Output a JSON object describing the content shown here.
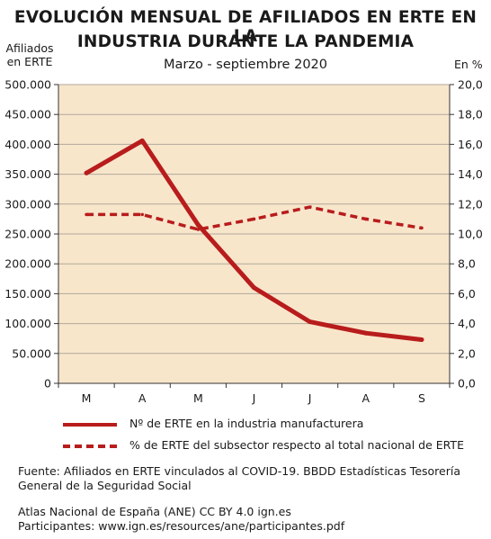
{
  "title_line1": "EVOLUCIÓN MENSUAL DE AFILIADOS EN ERTE EN LA",
  "title_line2": "INDUSTRIA DURANTE LA PANDEMIA",
  "subtitle": "Marzo - septiembre 2020",
  "ylabel_left_line1": "Afiliados",
  "ylabel_left_line2": "en ERTE",
  "ylabel_right": "En %",
  "source_line1": "Fuente: Afiliados en ERTE vinculados al COVID-19. BBDD Estadísticas Tesorería",
  "source_line2": "General de la Seguridad Social",
  "credit_line1": "Atlas Nacional de España (ANE) CC BY 4.0 ign.es",
  "credit_line2": "Participantes: www.ign.es/resources/ane/participantes.pdf",
  "colors": {
    "series": "#b81c1c",
    "plot_bg": "#f8e6cb",
    "grid": "#b0a89c"
  },
  "chart_data": {
    "type": "line",
    "categories": [
      "M",
      "A",
      "M",
      "J",
      "J",
      "A",
      "S"
    ],
    "ylim_left": [
      0,
      500000
    ],
    "ylim_right": [
      0,
      20
    ],
    "yticks_left": [
      "0",
      "50.000",
      "100.000",
      "150.000",
      "200.000",
      "250.000",
      "300.000",
      "350.000",
      "400.000",
      "450.000",
      "500.000"
    ],
    "yticks_right": [
      "0,0",
      "2,0",
      "4,0",
      "6,0",
      "8,0",
      "10,0",
      "12,0",
      "14,0",
      "16,0",
      "18,0",
      "20,0"
    ],
    "grid": "horizontal",
    "legend_position": "bottom",
    "series": [
      {
        "name": "Nº de ERTE en la industria manufacturera",
        "axis": "left",
        "style": "solid",
        "values": [
          352000,
          406000,
          265000,
          160000,
          103000,
          84000,
          73000
        ]
      },
      {
        "name": "% de ERTE del subsector respecto al total nacional de ERTE",
        "axis": "right",
        "style": "dashed",
        "values": [
          11.3,
          11.3,
          10.3,
          11.0,
          11.8,
          11.0,
          10.4
        ]
      }
    ]
  }
}
